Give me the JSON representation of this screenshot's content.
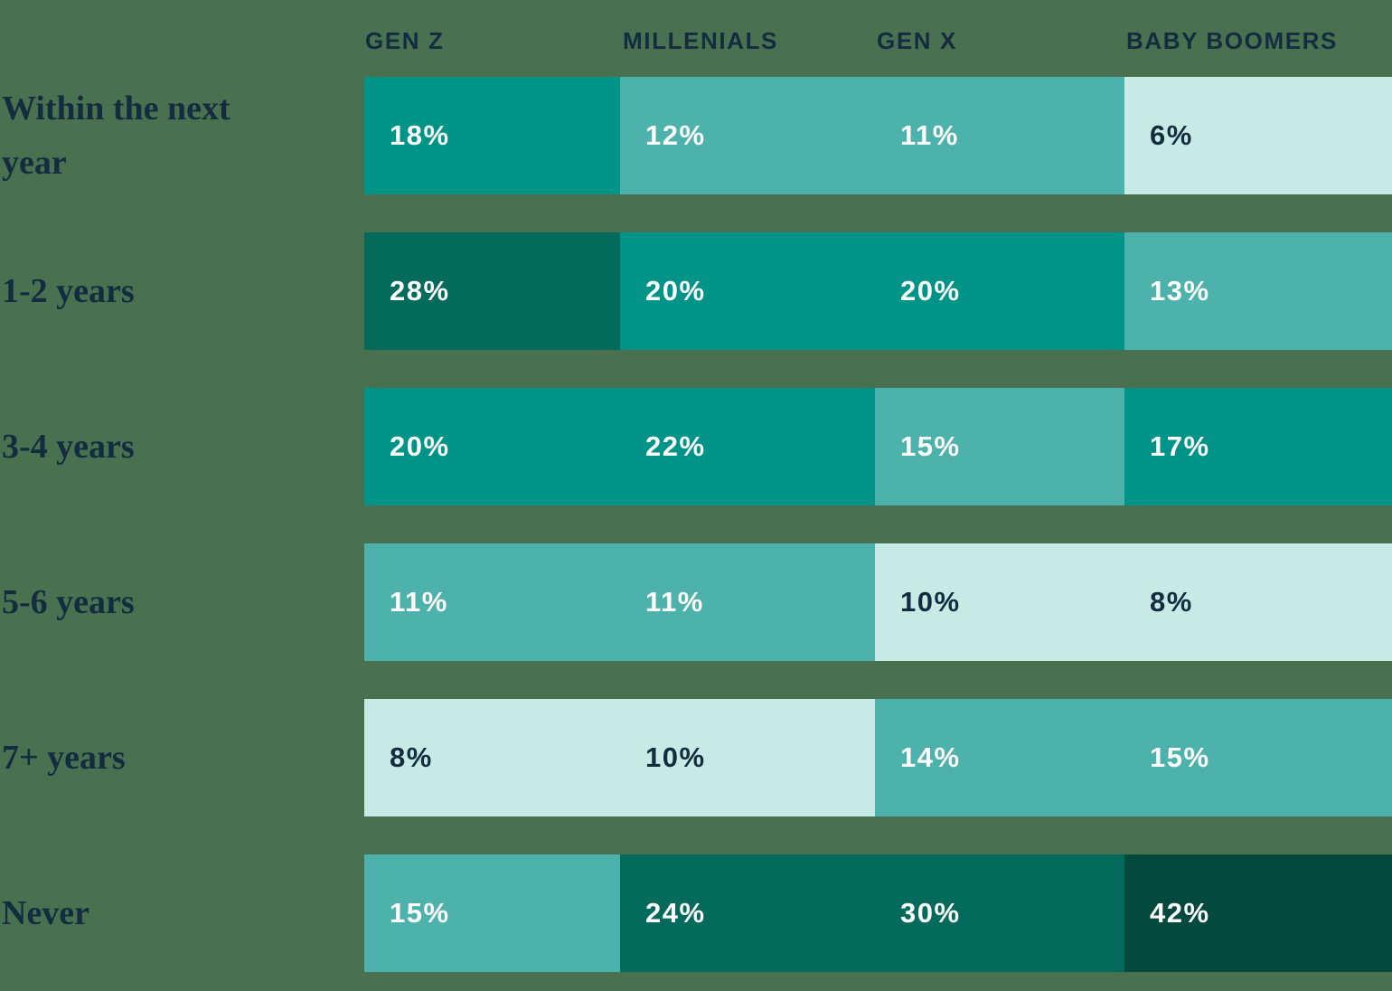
{
  "background_color": "#49714F",
  "text_colors": {
    "navy": "#132C40",
    "white": "#FFFFFF"
  },
  "tones": {
    "darkest": "#03493E",
    "dark": "#046B5C",
    "medium": "#009489",
    "light": "#4DB2AB",
    "mint": "#C7EAE4"
  },
  "columns": [
    {
      "label": "GEN Z"
    },
    {
      "label": "MILLENIALS"
    },
    {
      "label": "GEN X"
    },
    {
      "label": "BABY BOOMERS"
    }
  ],
  "rows": [
    {
      "label": "Within the next year",
      "cells": [
        {
          "value": "18%",
          "tone": "medium"
        },
        {
          "value": "12%",
          "tone": "light"
        },
        {
          "value": "11%",
          "tone": "light"
        },
        {
          "value": "6%",
          "tone": "mint"
        }
      ]
    },
    {
      "label": "1-2 years",
      "cells": [
        {
          "value": "28%",
          "tone": "dark"
        },
        {
          "value": "20%",
          "tone": "medium"
        },
        {
          "value": "20%",
          "tone": "medium"
        },
        {
          "value": "13%",
          "tone": "light"
        }
      ]
    },
    {
      "label": "3-4 years",
      "cells": [
        {
          "value": "20%",
          "tone": "medium"
        },
        {
          "value": "22%",
          "tone": "medium"
        },
        {
          "value": "15%",
          "tone": "light"
        },
        {
          "value": "17%",
          "tone": "medium"
        }
      ]
    },
    {
      "label": "5-6 years",
      "cells": [
        {
          "value": "11%",
          "tone": "light"
        },
        {
          "value": "11%",
          "tone": "light"
        },
        {
          "value": "10%",
          "tone": "mint"
        },
        {
          "value": "8%",
          "tone": "mint"
        }
      ]
    },
    {
      "label": "7+ years",
      "cells": [
        {
          "value": "8%",
          "tone": "mint"
        },
        {
          "value": "10%",
          "tone": "mint"
        },
        {
          "value": "14%",
          "tone": "light"
        },
        {
          "value": "15%",
          "tone": "light"
        }
      ]
    },
    {
      "label": "Never",
      "cells": [
        {
          "value": "15%",
          "tone": "light"
        },
        {
          "value": "24%",
          "tone": "dark"
        },
        {
          "value": "30%",
          "tone": "dark"
        },
        {
          "value": "42%",
          "tone": "darkest"
        }
      ]
    }
  ],
  "chart_data": {
    "type": "heatmap",
    "columns": [
      "GEN Z",
      "MILLENIALS",
      "GEN X",
      "BABY BOOMERS"
    ],
    "rows": [
      "Within the next year",
      "1-2 years",
      "3-4 years",
      "5-6 years",
      "7+ years",
      "Never"
    ],
    "values_percent": [
      [
        18,
        12,
        11,
        6
      ],
      [
        28,
        20,
        20,
        13
      ],
      [
        20,
        22,
        15,
        17
      ],
      [
        11,
        11,
        10,
        8
      ],
      [
        8,
        10,
        14,
        15
      ],
      [
        15,
        24,
        30,
        42
      ]
    ],
    "value_format": "percent",
    "legend": "none",
    "color_scale_buckets": {
      "<=10": "#C7EAE4",
      "11-16": "#4DB2AB",
      "17-23": "#009489",
      "24-35": "#046B5C",
      ">=36": "#03493E"
    }
  }
}
